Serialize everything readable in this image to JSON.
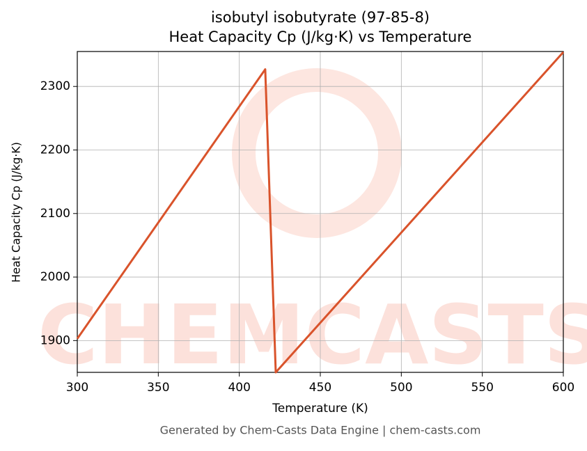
{
  "chart_data": {
    "type": "line",
    "title": "isobutyl isobutyrate (97-85-8)",
    "subtitle": "Heat Capacity Cp (J/kg·K) vs Temperature",
    "x_label": "Temperature (K)",
    "y_label": "Heat Capacity Cp (J/kg·K)",
    "watermark": "CHEMCASTS",
    "footer": "Generated by Chem-Casts Data Engine | chem-casts.com",
    "x": [
      300,
      416,
      422.5,
      600
    ],
    "series": [
      {
        "name": "Cp",
        "color": "#d9532b",
        "values": [
          1903,
          2327,
          1850,
          2354
        ]
      }
    ],
    "xlim": [
      300,
      600
    ],
    "xticks": [
      300,
      350,
      400,
      450,
      500,
      550,
      600
    ],
    "ylim": [
      1850,
      2355
    ],
    "yticks": [
      1900,
      2000,
      2100,
      2200,
      2300
    ],
    "grid": true
  }
}
